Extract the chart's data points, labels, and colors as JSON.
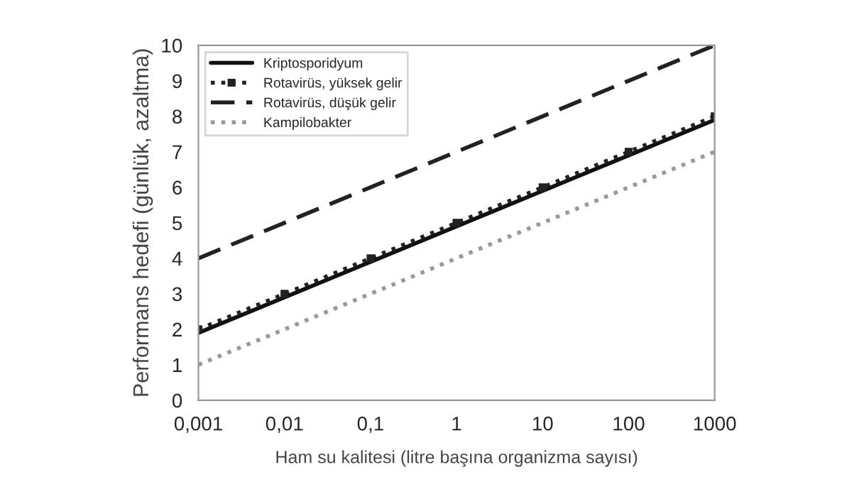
{
  "chart_data": {
    "type": "line",
    "xlabel": "Ham su kalitesi (litre başına organizma sayısı)",
    "ylabel": "Performans hedefi (günlük, azaltma)",
    "log": "x",
    "xlim": [
      0.001,
      1000
    ],
    "xticks": [
      {
        "value": 0.001,
        "label": "0,001"
      },
      {
        "value": 0.01,
        "label": "0,01"
      },
      {
        "value": 0.1,
        "label": "0,1"
      },
      1,
      10,
      100,
      1000
    ],
    "ylim": [
      0,
      10
    ],
    "yticks": [
      0,
      1,
      2,
      3,
      4,
      5,
      6,
      7,
      8,
      9,
      10
    ],
    "grid": false,
    "legend": "top left",
    "x": [
      0.001,
      0.01,
      0.1,
      1,
      10,
      100,
      1000
    ],
    "series": [
      {
        "name": "Kriptosporidyum",
        "color": "#111111",
        "line_style": "solid",
        "marker": "none",
        "values": [
          1.9,
          2.9,
          3.9,
          4.9,
          5.9,
          6.9,
          7.9
        ]
      },
      {
        "name": "Rotavirüs, yüksek gelir",
        "color": "#222222",
        "line_style": "dotted",
        "marker": "square",
        "values": [
          2,
          3,
          4,
          5,
          6,
          7,
          8
        ]
      },
      {
        "name": "Rotavirüs, düşük gelir",
        "color": "#222222",
        "line_style": "dashed",
        "marker": "none",
        "values": [
          4,
          5,
          6,
          7,
          8,
          9,
          10
        ]
      },
      {
        "name": "Kampilobakter",
        "color": "#999999",
        "line_style": "dotted",
        "marker": "none",
        "values": [
          1,
          2,
          3,
          4,
          5,
          6,
          7
        ]
      }
    ]
  }
}
